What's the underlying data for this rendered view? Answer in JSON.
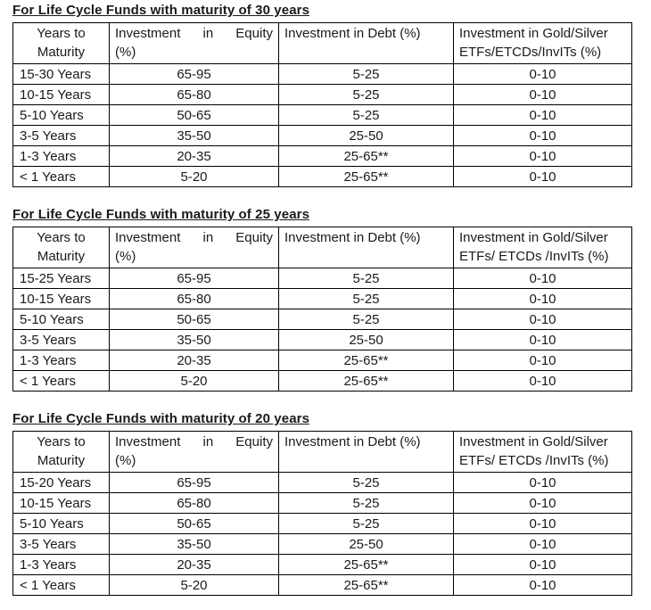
{
  "page": {
    "background": "#ffffff",
    "text_color": "#1a1a1a",
    "border_color": "#000000"
  },
  "sections": [
    {
      "heading": "For Life Cycle Funds with maturity of 30 years",
      "columns": [
        {
          "lines": [
            "Years to",
            "Maturity"
          ]
        },
        {
          "lines": [
            "Investment in Equity",
            "(%)"
          ],
          "justify_first": true
        },
        {
          "lines": [
            "Investment in Debt (%)"
          ]
        },
        {
          "lines": [
            "Investment in Gold/Silver",
            "ETFs/ETCDs/InvITs (%)"
          ]
        }
      ],
      "rows": [
        [
          "15-30 Years",
          "65-95",
          "5-25",
          "0-10"
        ],
        [
          "10-15 Years",
          "65-80",
          "5-25",
          "0-10"
        ],
        [
          "5-10 Years",
          "50-65",
          "5-25",
          "0-10"
        ],
        [
          "3-5 Years",
          "35-50",
          "25-50",
          "0-10"
        ],
        [
          "1-3 Years",
          "20-35",
          "25-65**",
          "0-10"
        ],
        [
          "< 1 Years",
          "5-20",
          "25-65**",
          "0-10"
        ]
      ]
    },
    {
      "heading": "For Life Cycle Funds with maturity of 25 years",
      "columns": [
        {
          "lines": [
            "Years to",
            "Maturity"
          ]
        },
        {
          "lines": [
            "Investment in Equity",
            "(%)"
          ],
          "justify_first": true
        },
        {
          "lines": [
            "Investment in Debt (%)"
          ]
        },
        {
          "lines": [
            "Investment in Gold/Silver",
            "ETFs/ ETCDs /InvITs (%)"
          ]
        }
      ],
      "rows": [
        [
          "15-25 Years",
          "65-95",
          "5-25",
          "0-10"
        ],
        [
          "10-15 Years",
          "65-80",
          "5-25",
          "0-10"
        ],
        [
          "5-10 Years",
          "50-65",
          "5-25",
          "0-10"
        ],
        [
          "3-5 Years",
          "35-50",
          "25-50",
          "0-10"
        ],
        [
          "1-3 Years",
          "20-35",
          "25-65**",
          "0-10"
        ],
        [
          "< 1 Years",
          "5-20",
          "25-65**",
          "0-10"
        ]
      ]
    },
    {
      "heading": "For Life Cycle Funds with maturity of 20 years",
      "columns": [
        {
          "lines": [
            "Years to",
            "Maturity"
          ]
        },
        {
          "lines": [
            "Investment in Equity",
            "(%)"
          ],
          "justify_first": true
        },
        {
          "lines": [
            "Investment in Debt (%)"
          ]
        },
        {
          "lines": [
            "Investment in Gold/Silver",
            "ETFs/ ETCDs /InvITs (%)"
          ]
        }
      ],
      "rows": [
        [
          "15-20 Years",
          "65-95",
          "5-25",
          "0-10"
        ],
        [
          "10-15 Years",
          "65-80",
          "5-25",
          "0-10"
        ],
        [
          "5-10 Years",
          "50-65",
          "5-25",
          "0-10"
        ],
        [
          "3-5 Years",
          "35-50",
          "25-50",
          "0-10"
        ],
        [
          "1-3 Years",
          "20-35",
          "25-65**",
          "0-10"
        ],
        [
          "< 1 Years",
          "5-20",
          "25-65**",
          "0-10"
        ]
      ]
    }
  ]
}
